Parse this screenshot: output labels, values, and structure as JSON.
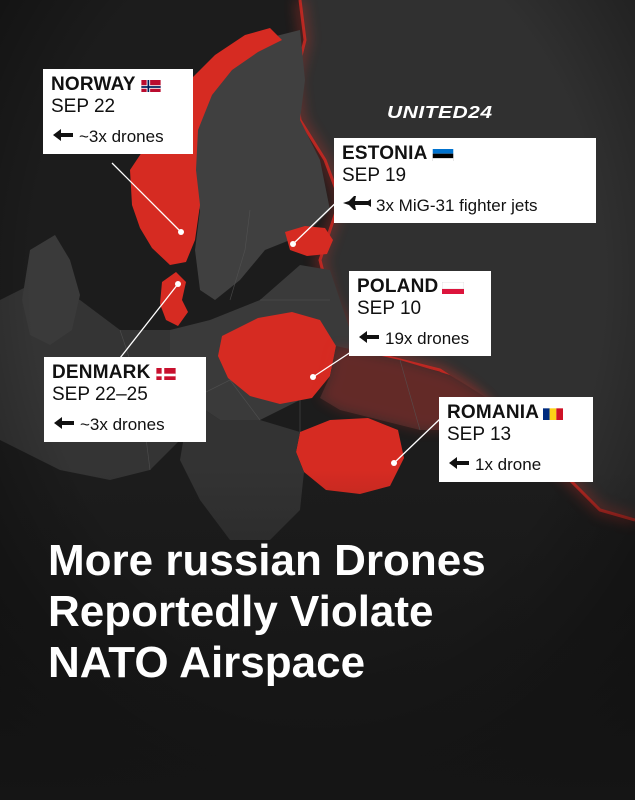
{
  "brand": "UNITED24",
  "headline": {
    "line1": "More russian Drones",
    "line2": "Reportedly Violate",
    "line3": "NATO Airspace"
  },
  "colors": {
    "highlight": "#d62b22",
    "background": "#151515",
    "land": "#3a3a3a",
    "callout_bg": "#ffffff"
  },
  "incidents": [
    {
      "country": "NORWAY",
      "flag": "norway-flag",
      "date": "SEP 22",
      "icon": "drone-icon",
      "detail": "~3x drones"
    },
    {
      "country": "ESTONIA",
      "flag": "estonia-flag",
      "date": "SEP 19",
      "icon": "fighter-jet-icon",
      "detail": "3x MiG-31 fighter jets"
    },
    {
      "country": "POLAND",
      "flag": "poland-flag",
      "date": "SEP 10",
      "icon": "drone-icon",
      "detail": "19x drones"
    },
    {
      "country": "DENMARK",
      "flag": "denmark-flag",
      "date": "SEP 22–25",
      "icon": "drone-icon",
      "detail": "~3x drones"
    },
    {
      "country": "ROMANIA",
      "flag": "romania-flag",
      "date": "SEP 13",
      "icon": "drone-icon",
      "detail": "1x drone"
    }
  ]
}
